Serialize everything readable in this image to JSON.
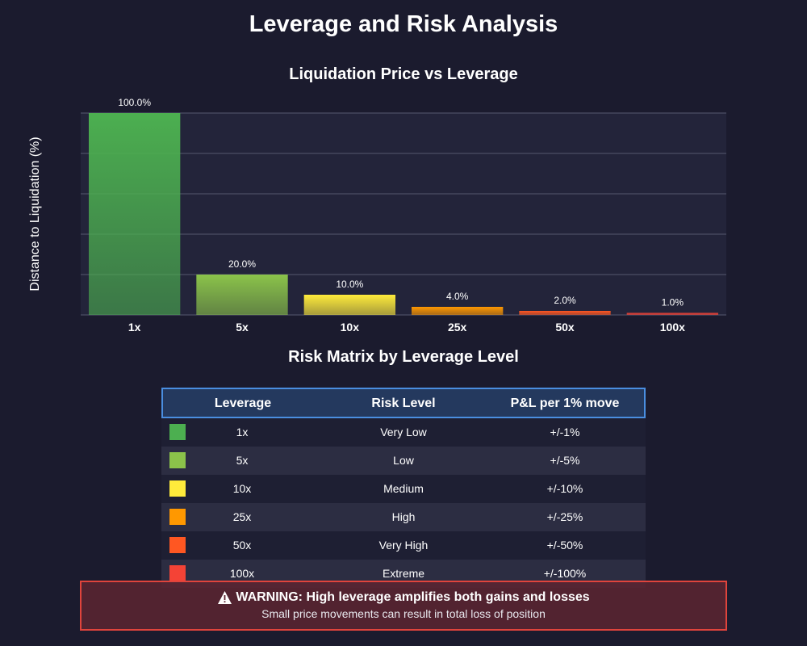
{
  "page": {
    "title": "Leverage and Risk Analysis"
  },
  "chart_data": {
    "type": "bar",
    "title": "Liquidation Price vs Leverage",
    "ylabel": "Distance to Liquidation (%)",
    "xlabel": "",
    "categories": [
      "1x",
      "5x",
      "10x",
      "25x",
      "50x",
      "100x"
    ],
    "values": [
      100.0,
      20.0,
      10.0,
      4.0,
      2.0,
      1.0
    ],
    "data_labels": [
      "100.0%",
      "20.0%",
      "10.0%",
      "4.0%",
      "2.0%",
      "1.0%"
    ],
    "ylim": [
      0,
      100
    ],
    "grid": true,
    "bar_colors": [
      "#4caf50",
      "#8bc34a",
      "#ffeb3b",
      "#ff9800",
      "#ff5722",
      "#f44336"
    ]
  },
  "matrix": {
    "title": "Risk Matrix by Leverage Level",
    "headers": {
      "leverage": "Leverage",
      "risk": "Risk Level",
      "pl": "P&L per 1% move"
    },
    "rows": [
      {
        "leverage": "1x",
        "risk": "Very Low",
        "pl": "+/-1%",
        "color": "#4caf50"
      },
      {
        "leverage": "5x",
        "risk": "Low",
        "pl": "+/-5%",
        "color": "#8bc34a"
      },
      {
        "leverage": "10x",
        "risk": "Medium",
        "pl": "+/-10%",
        "color": "#ffeb3b"
      },
      {
        "leverage": "25x",
        "risk": "High",
        "pl": "+/-25%",
        "color": "#ff9800"
      },
      {
        "leverage": "50x",
        "risk": "Very High",
        "pl": "+/-50%",
        "color": "#ff5722"
      },
      {
        "leverage": "100x",
        "risk": "Extreme",
        "pl": "+/-100%",
        "color": "#f44336"
      }
    ]
  },
  "warning": {
    "icon": "warning-triangle-icon",
    "title": "WARNING: High leverage amplifies both gains and losses",
    "text": "Small price movements can result in total loss of position"
  },
  "colors": {
    "background": "#1b1b2e",
    "plot_area": "#23243a",
    "header_bg": "#24395e",
    "header_border": "#4a8ee0",
    "warning_border": "#e0443c"
  }
}
